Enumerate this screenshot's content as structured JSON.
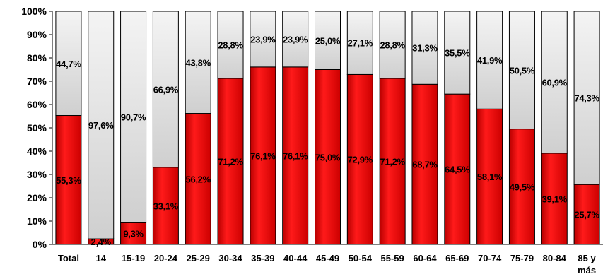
{
  "chart_data": {
    "type": "bar",
    "stacked": true,
    "categories": [
      "Total",
      "14",
      "15-19",
      "20-24",
      "25-29",
      "30-34",
      "35-39",
      "40-44",
      "45-49",
      "50-54",
      "55-59",
      "60-64",
      "65-69",
      "70-74",
      "75-79",
      "80-84",
      "85 y más"
    ],
    "series": [
      {
        "values": [
          55.3,
          2.4,
          9.3,
          33.1,
          56.2,
          71.2,
          76.1,
          76.1,
          75.0,
          72.9,
          71.2,
          68.7,
          64.5,
          58.1,
          49.5,
          39.1,
          25.7
        ],
        "labels": [
          "55,3%",
          "2,4%",
          "9,3%",
          "33,1%",
          "56,2%",
          "71,2%",
          "76,1%",
          "76,1%",
          "75,0%",
          "72,9%",
          "71,2%",
          "68,7%",
          "64,5%",
          "58,1%",
          "49,5%",
          "39,1%",
          "25,7%"
        ],
        "color": "#e30000"
      },
      {
        "values": [
          44.7,
          97.6,
          90.7,
          66.9,
          43.8,
          28.8,
          23.9,
          23.9,
          25.0,
          27.1,
          28.8,
          31.3,
          35.5,
          41.9,
          50.5,
          60.9,
          74.3
        ],
        "labels": [
          "44,7%",
          "97,6%",
          "90,7%",
          "66,9%",
          "43,8%",
          "28,8%",
          "23,9%",
          "23,9%",
          "25,0%",
          "27,1%",
          "28,8%",
          "31,3%",
          "35,5%",
          "41,9%",
          "50,5%",
          "60,9%",
          "74,3%"
        ],
        "color": "#e6e6e6"
      }
    ],
    "y_ticks": [
      "0%",
      "10%",
      "20%",
      "30%",
      "40%",
      "50%",
      "60%",
      "70%",
      "80%",
      "90%",
      "100%"
    ],
    "ylim": [
      0,
      100
    ],
    "grid": false,
    "legend": "none",
    "title": "",
    "xlabel": "",
    "ylabel": ""
  }
}
